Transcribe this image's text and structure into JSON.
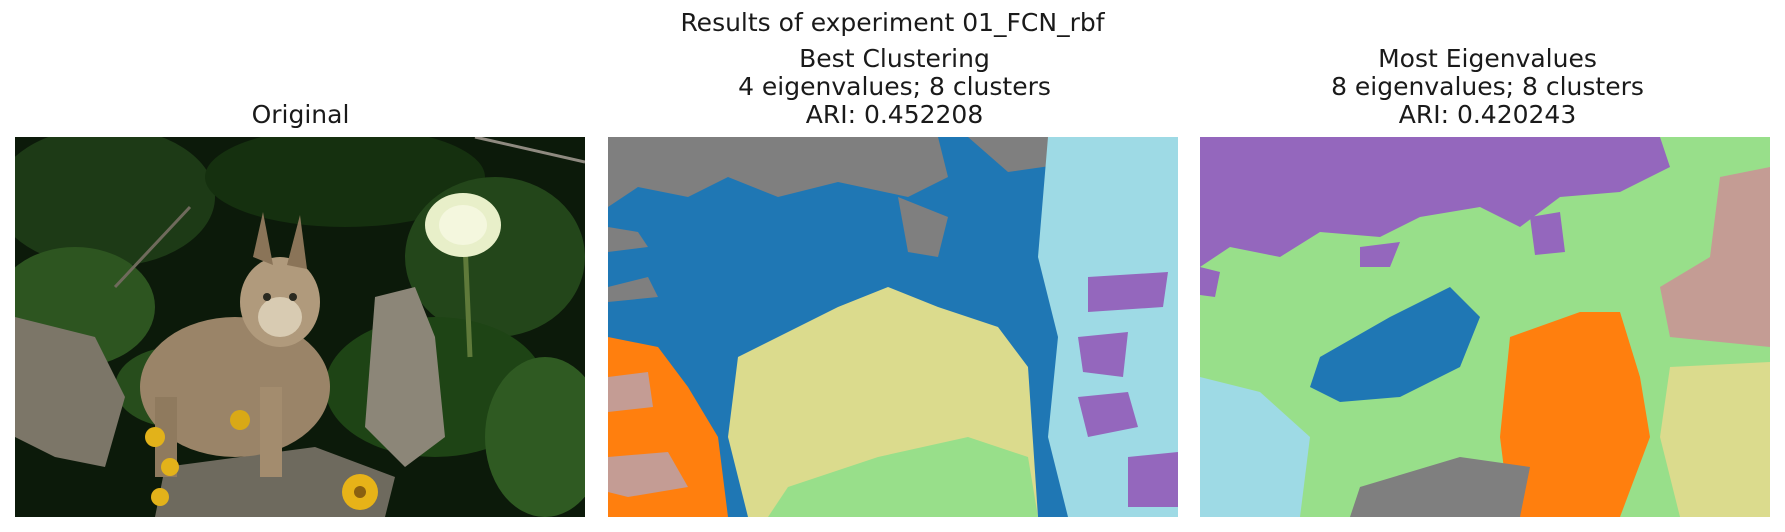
{
  "figure": {
    "title": "Results of experiment 01_FCN_rbf"
  },
  "panels": [
    {
      "title_lines": [
        "Original"
      ]
    },
    {
      "title_lines": [
        "Best Clustering",
        "4 eigenvalues; 8 clusters",
        "ARI: 0.452208"
      ]
    },
    {
      "title_lines": [
        "Most Eigenvalues",
        "8 eigenvalues; 8 clusters",
        "ARI: 0.420243"
      ]
    }
  ],
  "colors": {
    "cluster_blue": "#1f77b4",
    "cluster_gray": "#7f7f7f",
    "cluster_lightblue": "#9edae5",
    "cluster_purple": "#9467bd",
    "cluster_olive": "#dbdb8d",
    "cluster_green": "#98df8a",
    "cluster_orange": "#ff7f0e",
    "cluster_pink": "#c49c94"
  }
}
